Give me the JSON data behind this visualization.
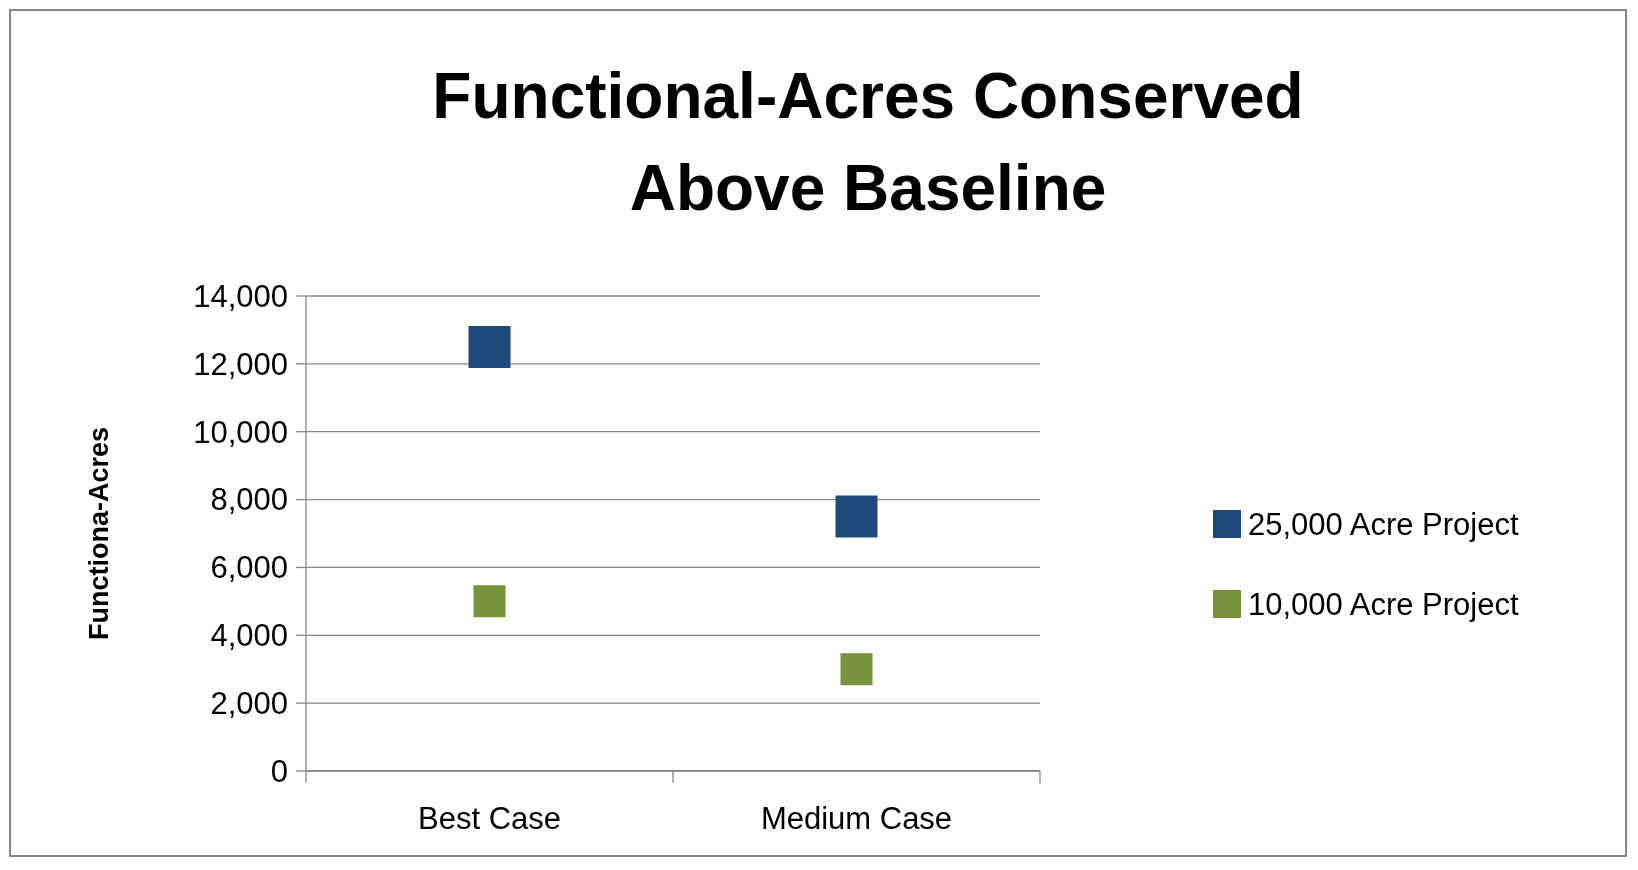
{
  "chart_data": {
    "type": "scatter",
    "title": "Functional-Acres Conserved Above Baseline",
    "ylabel": "Functiona-Acres",
    "categories": [
      "Best Case",
      "Medium Case"
    ],
    "series": [
      {
        "name": "25,000 Acre Project",
        "color": "#1f497d",
        "values": [
          12500,
          7500
        ]
      },
      {
        "name": "10,000 Acre Project",
        "color": "#77933c",
        "values": [
          5000,
          3000
        ]
      }
    ],
    "ylim": [
      0,
      14000
    ],
    "yticks": [
      {
        "value": 0,
        "label": "0"
      },
      {
        "value": 2000,
        "label": "2,000"
      },
      {
        "value": 4000,
        "label": "4,000"
      },
      {
        "value": 6000,
        "label": "6,000"
      },
      {
        "value": 8000,
        "label": "8,000"
      },
      {
        "value": 10000,
        "label": "10,000"
      },
      {
        "value": 12000,
        "label": "12,000"
      },
      {
        "value": 14000,
        "label": "14,000"
      }
    ],
    "grid": "y",
    "legend": "right",
    "marker": "square"
  }
}
